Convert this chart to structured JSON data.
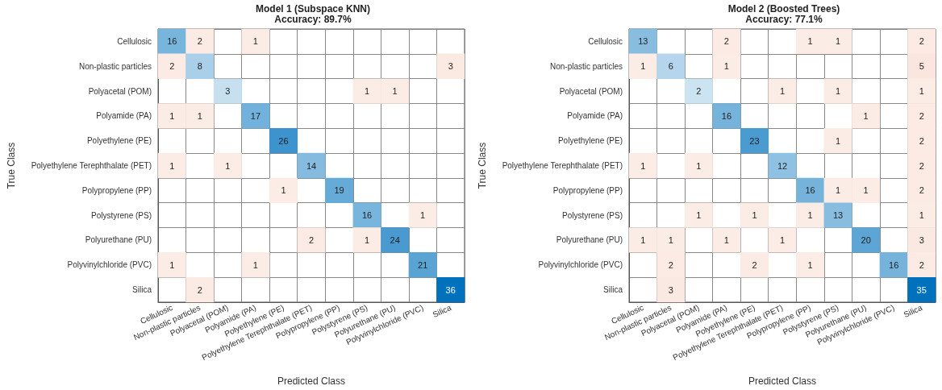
{
  "chart_data": [
    {
      "type": "heatmap",
      "title": "Model 1 (Subspace KNN)",
      "subtitle": "Accuracy: 89.7%",
      "xlabel": "Predicted Class",
      "ylabel": "True Class",
      "categories": [
        "Cellulosic",
        "Non-plastic particles",
        "Polyacetal (POM)",
        "Polyamide (PA)",
        "Polyethylene (PE)",
        "Polyethylene Terephthalate (PET)",
        "Polypropylene (PP)",
        "Polystyrene (PS)",
        "Polyurethane (PU)",
        "Polyvinylchloride (PVC)",
        "Silica"
      ],
      "y_categories": [
        "Cellulosic",
        "Non-plastic particles",
        "Polyacetal (POM)",
        "Polyamide (PA)",
        "Polyethylene (PE)",
        "Polyethylene Terephthalate (PET)",
        "Polypropylene (PP)",
        "Polystyrene (PS)",
        "Polyurethane (PU)",
        "Polyvinylchloride (PVC)",
        "Silica"
      ],
      "cells": [
        [
          16,
          2,
          null,
          1,
          null,
          null,
          null,
          null,
          null,
          null,
          null
        ],
        [
          2,
          8,
          null,
          null,
          null,
          null,
          null,
          null,
          null,
          null,
          3
        ],
        [
          null,
          null,
          3,
          null,
          null,
          null,
          null,
          1,
          1,
          null,
          null
        ],
        [
          1,
          1,
          null,
          17,
          null,
          null,
          null,
          null,
          null,
          null,
          null
        ],
        [
          null,
          null,
          null,
          null,
          26,
          null,
          null,
          null,
          null,
          null,
          null
        ],
        [
          1,
          null,
          1,
          null,
          null,
          14,
          null,
          null,
          null,
          null,
          null
        ],
        [
          null,
          null,
          null,
          null,
          1,
          null,
          19,
          null,
          null,
          null,
          null
        ],
        [
          null,
          null,
          null,
          null,
          null,
          null,
          null,
          16,
          null,
          1,
          null
        ],
        [
          null,
          null,
          null,
          null,
          null,
          2,
          null,
          1,
          24,
          null,
          null
        ],
        [
          1,
          null,
          null,
          1,
          null,
          null,
          null,
          null,
          null,
          21,
          null
        ],
        [
          null,
          2,
          null,
          null,
          null,
          null,
          null,
          null,
          null,
          null,
          36
        ]
      ],
      "data_labels": true,
      "grid": true
    },
    {
      "type": "heatmap",
      "title": "Model 2 (Boosted Trees)",
      "subtitle": "Accuracy: 77.1%",
      "xlabel": "Predicted Class",
      "ylabel": "True Class",
      "categories": [
        "Cellulosic",
        "Non-plastic particles",
        "Polyacetal (POM)",
        "Polyamide (PA)",
        "Polyethylene (PE)",
        "Polyethylene Terephthalate (PET)",
        "Polypropylene (PP)",
        "Polystyrene (PS)",
        "Polyurethane (PU)",
        "Polyvinylchloride (PVC)",
        "Silica"
      ],
      "y_categories": [
        "Cellulosic",
        "Non-plastic particles",
        "Polyacetal (POM)",
        "Polyamide (PA)",
        "Polyethylene (PE)",
        "Polyethylene Terephthalate (PET)",
        "Polypropylene (PP)",
        "Polystyrene (PS)",
        "Polyurethane (PU)",
        "Polyvinylchloride (PVC)",
        "Silica"
      ],
      "cells": [
        [
          13,
          null,
          null,
          2,
          null,
          null,
          1,
          1,
          null,
          null,
          2
        ],
        [
          1,
          6,
          null,
          1,
          null,
          null,
          null,
          null,
          null,
          null,
          5
        ],
        [
          null,
          null,
          2,
          null,
          null,
          1,
          null,
          1,
          null,
          null,
          1
        ],
        [
          null,
          null,
          null,
          16,
          null,
          null,
          null,
          null,
          1,
          null,
          2
        ],
        [
          null,
          null,
          null,
          null,
          23,
          null,
          null,
          1,
          null,
          null,
          2
        ],
        [
          1,
          null,
          1,
          null,
          null,
          12,
          null,
          null,
          null,
          null,
          2
        ],
        [
          null,
          null,
          null,
          null,
          null,
          null,
          16,
          1,
          1,
          null,
          2
        ],
        [
          null,
          null,
          1,
          null,
          1,
          null,
          1,
          13,
          null,
          null,
          1
        ],
        [
          1,
          1,
          null,
          1,
          null,
          1,
          null,
          null,
          20,
          null,
          3
        ],
        [
          null,
          2,
          null,
          null,
          2,
          null,
          1,
          null,
          null,
          16,
          2
        ],
        [
          null,
          3,
          null,
          null,
          null,
          null,
          null,
          null,
          null,
          null,
          35
        ]
      ],
      "data_labels": true,
      "grid": true
    }
  ]
}
